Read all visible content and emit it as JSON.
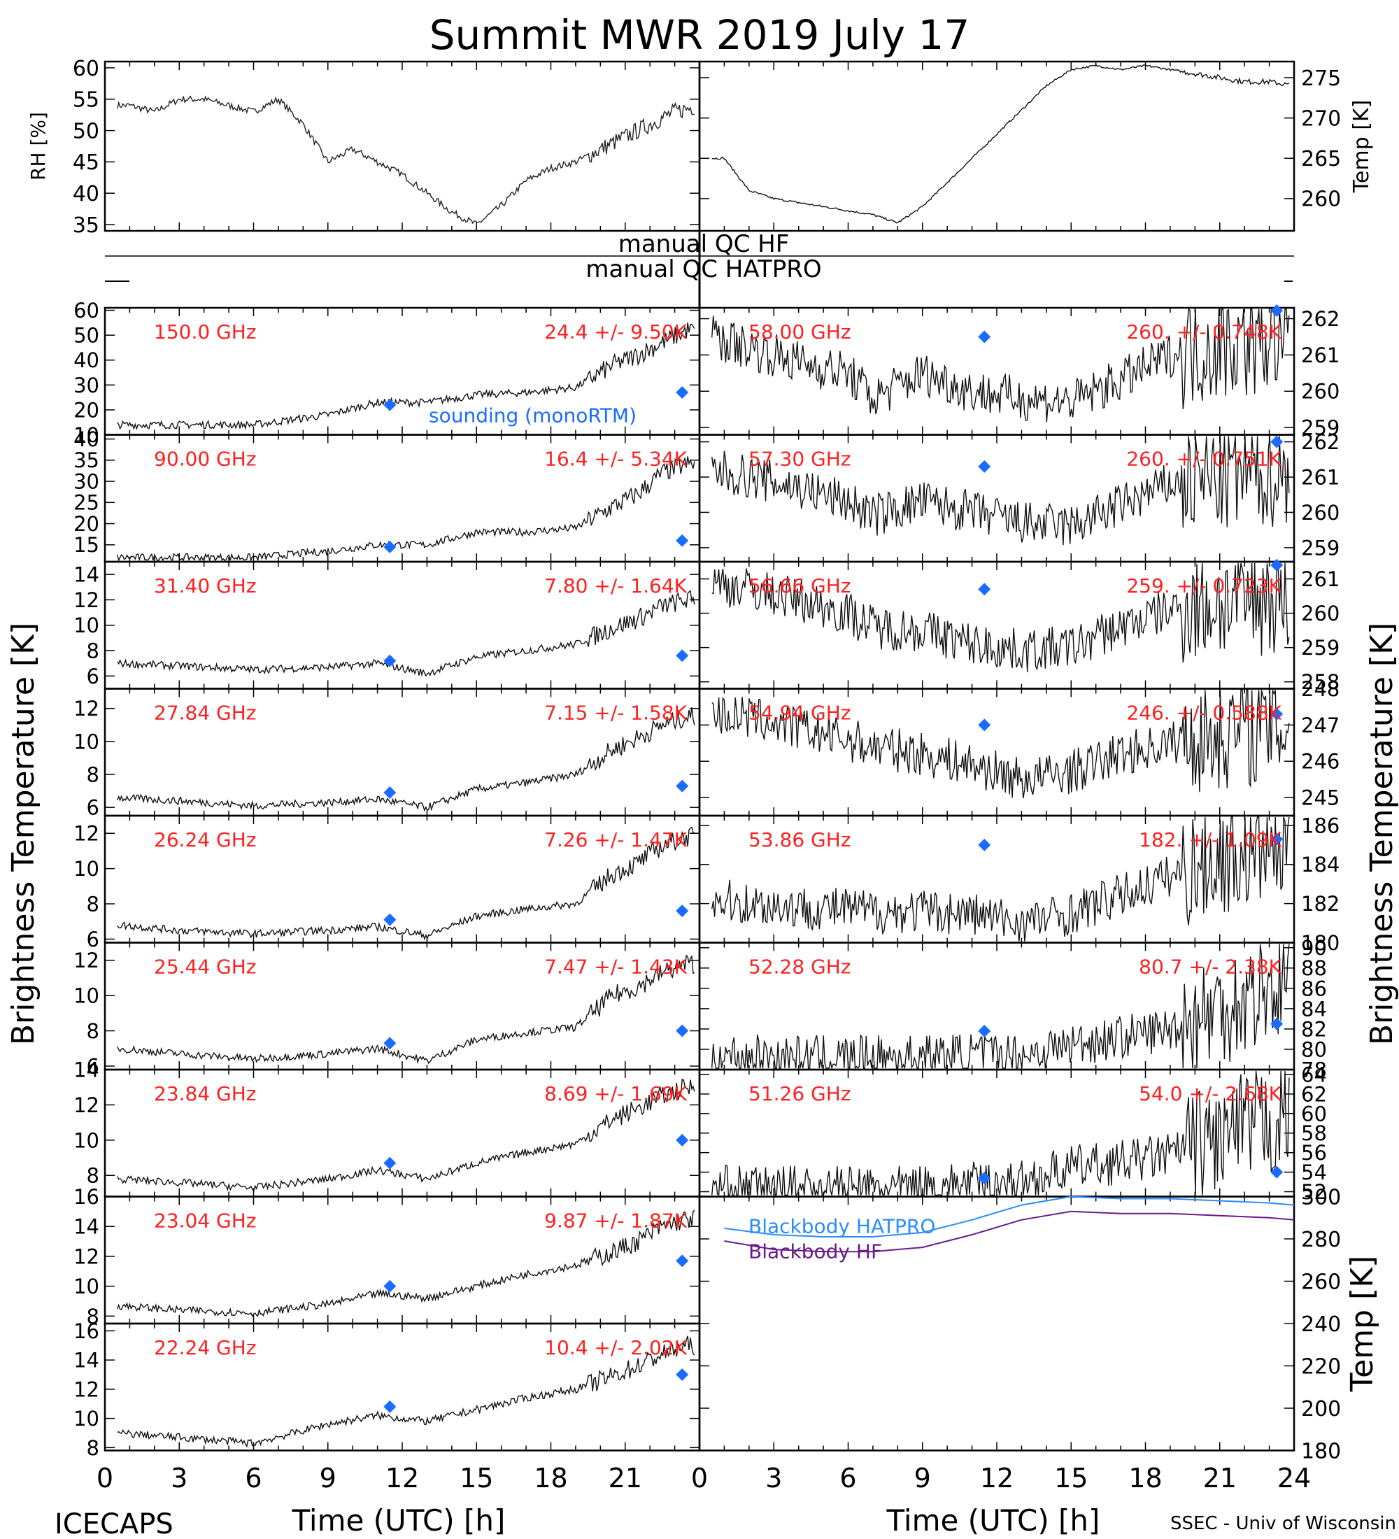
{
  "figure": {
    "title": "Summit MWR 2019 July 17",
    "footer_left": "ICECAPS",
    "footer_right": "SSEC - Univ of Wisconsin",
    "x_label": "Time (UTC) [h]",
    "y_label_left": "Brightness Temperature [K]",
    "y_label_right": "Brightness Temperature [K]",
    "time_ticks": [
      "0",
      "3",
      "6",
      "9",
      "12",
      "15",
      "18",
      "21",
      "24"
    ],
    "colors": {
      "observed": "#000000",
      "channel_label": "#ff2020",
      "sounding": "#1a6cff",
      "blackbody_hatpro": "#2a8cff",
      "blackbody_hf": "#6a1a8a"
    }
  },
  "chart_data": [
    {
      "id": "rh",
      "type": "line",
      "ylabel": "RH [%]",
      "ylim": [
        34,
        61
      ],
      "yticks": [
        "35",
        "40",
        "45",
        "50",
        "55",
        "60"
      ],
      "x": [
        1,
        2,
        3,
        4,
        5,
        6,
        7,
        8,
        9,
        10,
        11,
        12,
        13,
        14,
        15,
        16,
        17,
        18,
        19,
        20,
        21,
        22,
        23,
        24
      ],
      "values": [
        54,
        53,
        55,
        55,
        54,
        53,
        55,
        51,
        45,
        47,
        45,
        43,
        40,
        37,
        35,
        38,
        42,
        44,
        45,
        47,
        49,
        51,
        53,
        54
      ]
    },
    {
      "id": "temp",
      "type": "line",
      "ylabel": "Temp [K]",
      "ylim": [
        256,
        277
      ],
      "yticks": [
        "260",
        "265",
        "270",
        "275"
      ],
      "x": [
        1,
        2,
        3,
        4,
        5,
        6,
        7,
        8,
        9,
        10,
        11,
        12,
        13,
        14,
        15,
        16,
        17,
        18,
        19,
        20,
        21,
        22,
        23,
        24
      ],
      "values": [
        265,
        261,
        260,
        259.5,
        259,
        258.5,
        258,
        257,
        259,
        262,
        265,
        268,
        271,
        274,
        276,
        276.5,
        276,
        276.5,
        276,
        275.5,
        275,
        274.5,
        274.5,
        274
      ]
    },
    {
      "id": "qc",
      "type": "table",
      "rows": [
        "manual QC HF",
        "manual QC HATPRO"
      ]
    },
    {
      "type": "line",
      "column": "left",
      "series": [
        {
          "channel": "150.0 GHz",
          "stat": "24.4 +/- 9.50K",
          "ylim": [
            10,
            61
          ],
          "yticks": [
            "10",
            "20",
            "30",
            "40",
            "50",
            "60"
          ],
          "x": [
            0.5,
            3,
            6,
            9,
            11,
            13,
            15,
            17,
            19,
            20.5,
            21.5,
            22.5,
            23.5
          ],
          "values": [
            14,
            14,
            14,
            18,
            23,
            23,
            26,
            27,
            29,
            38,
            42,
            47,
            52
          ],
          "sounding": [
            [
              11.5,
              22
            ],
            [
              23.3,
              27
            ]
          ],
          "note": "sounding (monoRTM)"
        },
        {
          "channel": "90.00 GHz",
          "stat": "16.4 +/- 5.34K",
          "ylim": [
            11,
            41
          ],
          "yticks": [
            "15",
            "20",
            "25",
            "30",
            "35",
            "40"
          ],
          "x": [
            0.5,
            3,
            6,
            9,
            11,
            13,
            15,
            17,
            19,
            20.5,
            21.5,
            22.5,
            23.5
          ],
          "values": [
            12,
            12,
            12,
            13.5,
            15,
            15,
            18,
            18,
            19,
            24,
            27,
            32,
            34
          ],
          "sounding": [
            [
              11.5,
              14.5
            ],
            [
              23.3,
              16
            ]
          ]
        },
        {
          "channel": "31.40 GHz",
          "stat": "7.80 +/- 1.64K",
          "ylim": [
            5,
            15
          ],
          "yticks": [
            "6",
            "8",
            "10",
            "12",
            "14"
          ],
          "x": [
            0.5,
            3,
            6,
            9,
            11,
            13,
            15,
            17,
            19,
            20.5,
            21.5,
            22.5,
            23.5
          ],
          "values": [
            7,
            6.8,
            6.5,
            6.7,
            7,
            6.2,
            7.5,
            8,
            8.5,
            9.8,
            10.5,
            11.5,
            12
          ],
          "sounding": [
            [
              11.5,
              7.2
            ],
            [
              23.3,
              7.6
            ]
          ]
        },
        {
          "channel": "27.84 GHz",
          "stat": "7.15 +/- 1.58K",
          "ylim": [
            5.5,
            13.2
          ],
          "yticks": [
            "6",
            "8",
            "10",
            "12"
          ],
          "x": [
            0.5,
            3,
            6,
            9,
            11,
            13,
            15,
            17,
            19,
            20.5,
            21.5,
            22.5,
            23.5
          ],
          "values": [
            6.6,
            6.4,
            6.1,
            6.3,
            6.5,
            6,
            7.1,
            7.5,
            8,
            9.5,
            10.2,
            11,
            11.5
          ],
          "sounding": [
            [
              11.5,
              6.9
            ],
            [
              23.3,
              7.3
            ]
          ]
        },
        {
          "channel": "26.24 GHz",
          "stat": "7.26 +/- 1.47K",
          "ylim": [
            5.8,
            13
          ],
          "yticks": [
            "6",
            "8",
            "10",
            "12"
          ],
          "x": [
            0.5,
            3,
            6,
            9,
            11,
            13,
            15,
            17,
            19,
            20.5,
            21.5,
            22.5,
            23.5
          ],
          "values": [
            6.8,
            6.5,
            6.3,
            6.5,
            6.7,
            6.2,
            7.3,
            7.7,
            8,
            9.7,
            10.3,
            11.3,
            11.8
          ],
          "sounding": [
            [
              11.5,
              7.1
            ],
            [
              23.3,
              7.6
            ]
          ]
        },
        {
          "channel": "25.44 GHz",
          "stat": "7.47 +/- 1.43K",
          "ylim": [
            5.8,
            13
          ],
          "yticks": [
            "6",
            "8",
            "10",
            "12"
          ],
          "x": [
            0.5,
            3,
            6,
            9,
            11,
            13,
            15,
            17,
            19,
            20.5,
            21.5,
            22.5,
            23.5
          ],
          "values": [
            7,
            6.7,
            6.4,
            6.7,
            7,
            6.3,
            7.5,
            7.9,
            8.2,
            10,
            10.5,
            11.3,
            11.8
          ],
          "sounding": [
            [
              11.5,
              7.3
            ],
            [
              23.3,
              8
            ]
          ]
        },
        {
          "channel": "23.84 GHz",
          "stat": "8.69 +/- 1.69K",
          "ylim": [
            6.8,
            14
          ],
          "yticks": [
            "8",
            "10",
            "12",
            "14"
          ],
          "x": [
            0.5,
            3,
            6,
            9,
            11,
            13,
            15,
            17,
            19,
            20.5,
            21.5,
            22.5,
            23.5
          ],
          "values": [
            7.8,
            7.6,
            7.3,
            7.8,
            8.3,
            7.8,
            8.7,
            9.3,
            9.8,
            11.2,
            11.8,
            12.5,
            13
          ],
          "sounding": [
            [
              11.5,
              8.7
            ],
            [
              23.3,
              10
            ]
          ]
        },
        {
          "channel": "23.04 GHz",
          "stat": "9.87 +/- 1.87K",
          "ylim": [
            7.5,
            16
          ],
          "yticks": [
            "8",
            "10",
            "12",
            "14",
            "16"
          ],
          "x": [
            0.5,
            3,
            6,
            9,
            11,
            13,
            15,
            17,
            19,
            20.5,
            21.5,
            22.5,
            23.5
          ],
          "values": [
            8.7,
            8.4,
            8.2,
            8.8,
            9.5,
            9.2,
            10,
            10.8,
            11.4,
            12.3,
            13,
            14,
            14.5
          ],
          "sounding": [
            [
              11.5,
              10
            ],
            [
              23.3,
              11.7
            ]
          ]
        },
        {
          "channel": "22.24 GHz",
          "stat": "10.4 +/- 2.02K",
          "ylim": [
            7.8,
            16.5
          ],
          "yticks": [
            "8",
            "10",
            "12",
            "14",
            "16"
          ],
          "x": [
            0.5,
            3,
            6,
            9,
            11,
            13,
            15,
            17,
            19,
            20.5,
            21.5,
            22.5,
            23.5
          ],
          "values": [
            9,
            8.7,
            8.3,
            9.6,
            10.2,
            9.8,
            10.6,
            11.4,
            12,
            12.9,
            13.6,
            14.4,
            15
          ],
          "sounding": [
            [
              11.5,
              10.8
            ],
            [
              23.3,
              13
            ]
          ]
        }
      ]
    },
    {
      "type": "line",
      "column": "right",
      "series": [
        {
          "channel": "58.00 GHz",
          "stat": "260. +/- 0.748K",
          "ylim": [
            258.8,
            262.3
          ],
          "yticks": [
            "259",
            "260",
            "261",
            "262"
          ],
          "x": [
            0.5,
            2,
            4,
            6,
            7,
            9,
            11,
            13,
            15,
            17,
            19,
            21,
            23.5
          ],
          "values": [
            261.5,
            261.2,
            260.8,
            260.5,
            259.8,
            260.5,
            260,
            259.8,
            259.7,
            260.3,
            261,
            261.3,
            261.5
          ],
          "sounding": [
            [
              11.5,
              261.5
            ],
            [
              23.3,
              263
            ]
          ]
        },
        {
          "channel": "57.30 GHz",
          "stat": "260. +/- 0.751K",
          "ylim": [
            258.6,
            262.2
          ],
          "yticks": [
            "259",
            "260",
            "261",
            "262"
          ],
          "x": [
            0.5,
            2,
            4,
            6,
            7,
            9,
            11,
            13,
            15,
            17,
            19,
            21,
            23.5
          ],
          "values": [
            261.2,
            261,
            260.7,
            260.3,
            259.9,
            260.3,
            260,
            259.7,
            259.6,
            260.2,
            260.8,
            261,
            261.2
          ],
          "sounding": [
            [
              11.5,
              261.3
            ],
            [
              23.3,
              262
            ]
          ]
        },
        {
          "channel": "56.66 GHz",
          "stat": "259. +/- 0.723K",
          "ylim": [
            257.8,
            261.5
          ],
          "yticks": [
            "258",
            "259",
            "260",
            "261"
          ],
          "x": [
            0.5,
            2,
            4,
            6,
            7,
            9,
            11,
            13,
            15,
            17,
            19,
            21,
            23.5
          ],
          "values": [
            260.9,
            260.7,
            260.4,
            260,
            259.6,
            259.5,
            259.1,
            258.9,
            259,
            259.6,
            260.1,
            260.3,
            260.5
          ],
          "sounding": [
            [
              11.5,
              260.7
            ],
            [
              23.3,
              261.4
            ]
          ]
        },
        {
          "channel": "54.94 GHz",
          "stat": "246. +/- 0.588K",
          "ylim": [
            244.5,
            248
          ],
          "yticks": [
            "245",
            "246",
            "247",
            "248"
          ],
          "x": [
            0.5,
            2,
            4,
            6,
            7,
            9,
            11,
            13,
            15,
            17,
            19,
            21,
            23.5
          ],
          "values": [
            247.3,
            247.2,
            246.9,
            246.6,
            246.4,
            246.2,
            245.9,
            245.5,
            245.7,
            246.2,
            246.5,
            246.8,
            247
          ],
          "sounding": [
            [
              11.5,
              247
            ],
            [
              23.3,
              247.3
            ]
          ]
        },
        {
          "channel": "53.86 GHz",
          "stat": "182. +/- 1.09K",
          "ylim": [
            180,
            186.5
          ],
          "yticks": [
            "180",
            "182",
            "184",
            "186"
          ],
          "x": [
            0.5,
            2,
            4,
            6,
            7,
            9,
            11,
            13,
            15,
            17,
            19,
            21,
            23.5
          ],
          "values": [
            182.2,
            182,
            181.8,
            181.7,
            181.6,
            181.6,
            181.5,
            181,
            181.5,
            182.4,
            183.4,
            184.3,
            185
          ],
          "sounding": [
            [
              11.5,
              185
            ],
            [
              23.3,
              185.3
            ]
          ]
        },
        {
          "channel": "52.28 GHz",
          "stat": "80.7 +/- 2.38K",
          "ylim": [
            78,
            90.5
          ],
          "yticks": [
            "78",
            "80",
            "82",
            "84",
            "86",
            "88",
            "90"
          ],
          "x": [
            0.5,
            2,
            4,
            6,
            7,
            9,
            11,
            13,
            15,
            17,
            19,
            21,
            23.5
          ],
          "values": [
            79.5,
            79.3,
            79.2,
            79.2,
            79.2,
            79.3,
            79.5,
            79.4,
            80.5,
            81.2,
            82,
            84,
            86.5
          ],
          "sounding": [
            [
              11.5,
              81.8
            ],
            [
              23.3,
              82.5
            ]
          ]
        },
        {
          "channel": "51.26 GHz",
          "stat": "54.0 +/- 2.68K",
          "ylim": [
            51.5,
            64.5
          ],
          "yticks": [
            "52",
            "54",
            "56",
            "58",
            "60",
            "62",
            "64"
          ],
          "x": [
            0.5,
            2,
            4,
            6,
            7,
            9,
            11,
            13,
            15,
            17,
            19,
            21,
            23.5
          ],
          "values": [
            52.5,
            52.4,
            52.4,
            52.4,
            52.3,
            52.5,
            52.8,
            53,
            54.5,
            55,
            55.8,
            57.5,
            59.5
          ],
          "sounding": [
            [
              11.5,
              53.4
            ],
            [
              23.3,
              54
            ]
          ]
        }
      ]
    },
    {
      "id": "blackbody",
      "type": "line",
      "ylabel": "Temp [K]",
      "ylim": [
        180,
        300
      ],
      "yticks": [
        "180",
        "200",
        "220",
        "240",
        "260",
        "280",
        "300"
      ],
      "x": [
        1,
        3,
        5,
        7,
        9,
        11,
        13,
        15,
        17,
        19,
        21,
        23,
        24
      ],
      "series": [
        {
          "name": "Blackbody HATPRO",
          "values": [
            285,
            282,
            281,
            281,
            283,
            289,
            296,
            300,
            299,
            299,
            298,
            297,
            296
          ]
        },
        {
          "name": "Blackbody HF",
          "values": [
            279,
            275,
            274,
            274,
            276,
            282,
            289,
            293,
            292,
            292,
            291,
            290,
            289
          ]
        }
      ]
    }
  ]
}
